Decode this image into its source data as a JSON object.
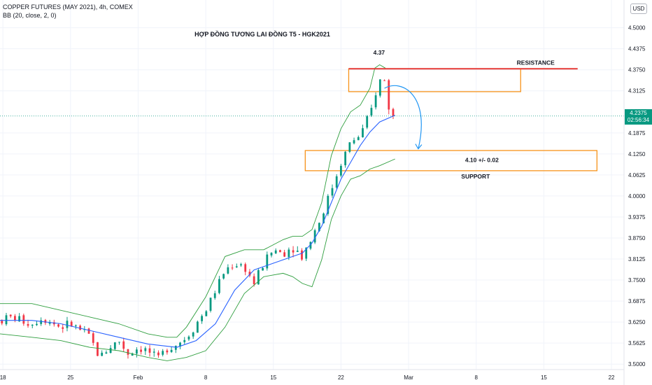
{
  "header": {
    "symbol_line": "COPPER FUTURES (MAY 2021), 4h, COMEX",
    "indicator_line": "BB (20, close, 2, 0)"
  },
  "currency": "USD",
  "current_price": {
    "value": "4.2375",
    "countdown": "02:56:34",
    "color": "#089981"
  },
  "colors": {
    "up": "#089981",
    "down": "#f23645",
    "bb_band": "#2e9e3e",
    "bb_basis": "#2962ff",
    "zone": "#f7931a",
    "resistance_line": "#e53935",
    "arrow": "#2196f3",
    "grid": "#f0f3fa"
  },
  "chart_data": {
    "type": "candlestick",
    "title": "HỢP ĐỒNG TƯƠNG LAI ĐỒNG T5 - HGK2021",
    "x_axis": {
      "ticks": [
        {
          "day": 18,
          "label": "18"
        },
        {
          "day": 25,
          "label": "25"
        },
        {
          "day": 32,
          "label": "Feb"
        },
        {
          "day": 39,
          "label": "8"
        },
        {
          "day": 46,
          "label": "15"
        },
        {
          "day": 53,
          "label": "22"
        },
        {
          "day": 60,
          "label": "Mar"
        },
        {
          "day": 67,
          "label": "8"
        },
        {
          "day": 74,
          "label": "15"
        },
        {
          "day": 81,
          "label": "22"
        }
      ],
      "range": [
        17.7,
        82.3
      ]
    },
    "y_axis": {
      "range": [
        3.49,
        4.57
      ],
      "ticks": [
        "4.5000",
        "4.4375",
        "4.3750",
        "4.3125",
        "4.1875",
        "4.1250",
        "4.0625",
        "4.0000",
        "3.9375",
        "3.8750",
        "3.8125",
        "3.7500",
        "3.6875",
        "3.6250",
        "3.5625",
        "3.5000"
      ]
    },
    "series": [
      {
        "name": "close",
        "points": [
          [
            17.7,
            3.63
          ],
          [
            19,
            3.64
          ],
          [
            21,
            3.62
          ],
          [
            22,
            3.64
          ],
          [
            24,
            3.61
          ],
          [
            25,
            3.62
          ],
          [
            26,
            3.6
          ],
          [
            27,
            3.58
          ],
          [
            28,
            3.52
          ],
          [
            29,
            3.55
          ],
          [
            30,
            3.57
          ],
          [
            31,
            3.53
          ],
          [
            32,
            3.55
          ],
          [
            33,
            3.54
          ],
          [
            34,
            3.51
          ],
          [
            35,
            3.55
          ],
          [
            36,
            3.56
          ],
          [
            37,
            3.58
          ],
          [
            38,
            3.62
          ],
          [
            39,
            3.66
          ],
          [
            40,
            3.72
          ],
          [
            41,
            3.78
          ],
          [
            42,
            3.8
          ],
          [
            43,
            3.79
          ],
          [
            44,
            3.74
          ],
          [
            45,
            3.8
          ],
          [
            46,
            3.84
          ],
          [
            47,
            3.83
          ],
          [
            48,
            3.85
          ],
          [
            49,
            3.82
          ],
          [
            50,
            3.88
          ],
          [
            51,
            3.94
          ],
          [
            52,
            4.02
          ],
          [
            53,
            4.1
          ],
          [
            54,
            4.16
          ],
          [
            55,
            4.18
          ],
          [
            56,
            4.24
          ],
          [
            56.8,
            4.33
          ],
          [
            57.4,
            4.36
          ],
          [
            58.1,
            4.24
          ],
          [
            58.6,
            4.23
          ]
        ]
      },
      {
        "name": "bb_upper",
        "points": [
          [
            17.7,
            3.68
          ],
          [
            21,
            3.68
          ],
          [
            24,
            3.66
          ],
          [
            27,
            3.64
          ],
          [
            30,
            3.62
          ],
          [
            33,
            3.59
          ],
          [
            35,
            3.58
          ],
          [
            36,
            3.58
          ],
          [
            37,
            3.61
          ],
          [
            39,
            3.7
          ],
          [
            41,
            3.82
          ],
          [
            43,
            3.84
          ],
          [
            45,
            3.84
          ],
          [
            47,
            3.87
          ],
          [
            48,
            3.88
          ],
          [
            49,
            3.88
          ],
          [
            50,
            3.9
          ],
          [
            51,
            3.98
          ],
          [
            52,
            4.12
          ],
          [
            53,
            4.2
          ],
          [
            54,
            4.25
          ],
          [
            55,
            4.27
          ],
          [
            56,
            4.32
          ],
          [
            56.5,
            4.38
          ],
          [
            57,
            4.39
          ],
          [
            57.6,
            4.38
          ]
        ]
      },
      {
        "name": "bb_basis",
        "points": [
          [
            17.7,
            3.63
          ],
          [
            21,
            3.63
          ],
          [
            24,
            3.62
          ],
          [
            27,
            3.6
          ],
          [
            30,
            3.58
          ],
          [
            33,
            3.56
          ],
          [
            36,
            3.55
          ],
          [
            38,
            3.57
          ],
          [
            40,
            3.62
          ],
          [
            42,
            3.72
          ],
          [
            44,
            3.78
          ],
          [
            46,
            3.8
          ],
          [
            48,
            3.82
          ],
          [
            49,
            3.83
          ],
          [
            50,
            3.86
          ],
          [
            51,
            3.91
          ],
          [
            52,
            3.98
          ],
          [
            53,
            4.05
          ],
          [
            54,
            4.1
          ],
          [
            55,
            4.15
          ],
          [
            56,
            4.19
          ],
          [
            57,
            4.22
          ],
          [
            58.6,
            4.24
          ]
        ]
      },
      {
        "name": "bb_lower",
        "points": [
          [
            17.7,
            3.59
          ],
          [
            21,
            3.58
          ],
          [
            24,
            3.57
          ],
          [
            27,
            3.55
          ],
          [
            30,
            3.54
          ],
          [
            33,
            3.52
          ],
          [
            35,
            3.51
          ],
          [
            37,
            3.52
          ],
          [
            39,
            3.54
          ],
          [
            41,
            3.61
          ],
          [
            43,
            3.71
          ],
          [
            45,
            3.76
          ],
          [
            47,
            3.77
          ],
          [
            48,
            3.76
          ],
          [
            49,
            3.74
          ],
          [
            50,
            3.73
          ],
          [
            51,
            3.81
          ],
          [
            52,
            3.93
          ],
          [
            53,
            4.0
          ],
          [
            54,
            4.05
          ],
          [
            55,
            4.06
          ],
          [
            56,
            4.08
          ],
          [
            57,
            4.09
          ],
          [
            58.6,
            4.11
          ]
        ]
      }
    ],
    "annotations": {
      "peak_label": {
        "text": "4.37",
        "day": 56.8,
        "price": 4.42
      },
      "resistance_zone": {
        "x1": 53.8,
        "x2": 71.6,
        "y1": 4.31,
        "y2": 4.378
      },
      "resistance_line": {
        "x1": 53.8,
        "x2": 77.5,
        "price": 4.378,
        "label": "RESISTANCE"
      },
      "support_zone": {
        "x1": 49.3,
        "x2": 79.5,
        "y1": 4.075,
        "y2": 4.135,
        "label": "4.10 +/- 0.02"
      },
      "support_label": "SUPPORT",
      "arrow": {
        "from_day": 57.5,
        "from_price": 4.32,
        "to_day": 61.0,
        "to_price": 4.14
      }
    }
  }
}
